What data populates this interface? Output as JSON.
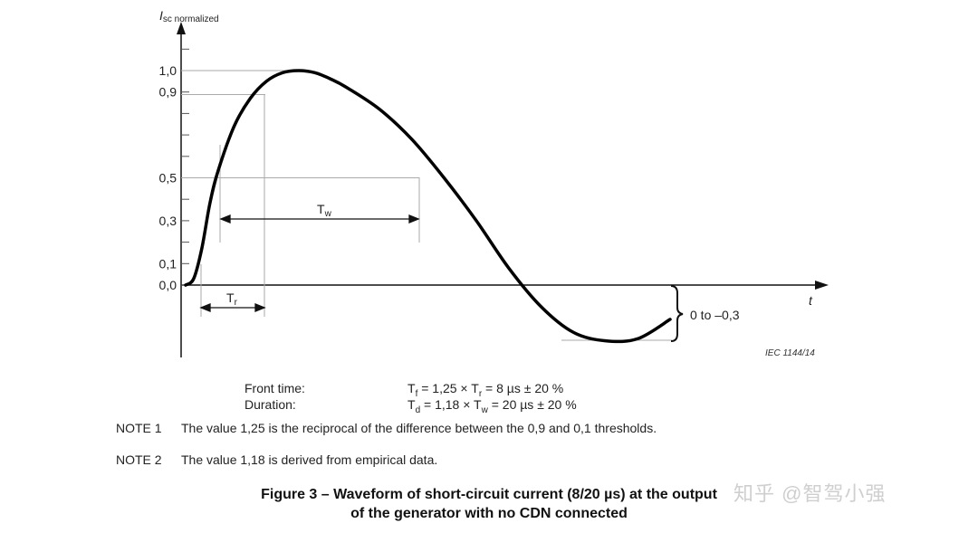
{
  "chart_data": {
    "type": "line",
    "title": "",
    "xlabel": "t",
    "ylabel_main": "I",
    "ylabel_sub": "sc normalized",
    "y_ticks": [
      "1,0",
      "0,9",
      "0,5",
      "0,3",
      "0,1",
      "0,0"
    ],
    "y_tick_values": [
      1.0,
      0.9,
      0.5,
      0.3,
      0.1,
      0.0
    ],
    "undershoot_label": "0 to –0,3",
    "marker_tw": "T",
    "marker_tw_sub": "w",
    "marker_tr": "T",
    "marker_tr_sub": "r",
    "code": "IEC   1144/14",
    "series": [
      {
        "values_description_only": false,
        "x": [
          0,
          0.5,
          1,
          1.5,
          2,
          3,
          4,
          5,
          6,
          7,
          8,
          9,
          10,
          12,
          14,
          16,
          18,
          20,
          22,
          24,
          26,
          28,
          30
        ],
        "y": [
          0.0,
          0.03,
          0.17,
          0.38,
          0.53,
          0.74,
          0.87,
          0.95,
          0.99,
          1.0,
          0.99,
          0.96,
          0.92,
          0.82,
          0.68,
          0.5,
          0.3,
          0.08,
          -0.1,
          -0.22,
          -0.26,
          -0.25,
          -0.16
        ]
      }
    ]
  },
  "formulas": {
    "front_label": "Front time:",
    "front_formula": "T",
    "front_sub1": "f",
    "front_rest1": " = 1,25 × T",
    "front_sub2": "r",
    "front_rest2": " = 8 µs ± 20 %",
    "duration_label": "Duration:",
    "dur_formula": "T",
    "dur_sub1": "d",
    "dur_rest1": " = 1,18 × T",
    "dur_sub2": "w",
    "dur_rest2": " = 20 µs ± 20 %"
  },
  "notes": [
    {
      "label": "NOTE 1",
      "text": "The value 1,25 is the reciprocal of the difference between the 0,9 and 0,1 thresholds."
    },
    {
      "label": "NOTE 2",
      "text": "The value 1,18 is derived from empirical data."
    }
  ],
  "caption": {
    "line1": "Figure 3 – Waveform of short-circuit current (8/20 µs) at the output",
    "line2": "of the generator with no CDN connected"
  },
  "watermark": "知乎 @智驾小强"
}
